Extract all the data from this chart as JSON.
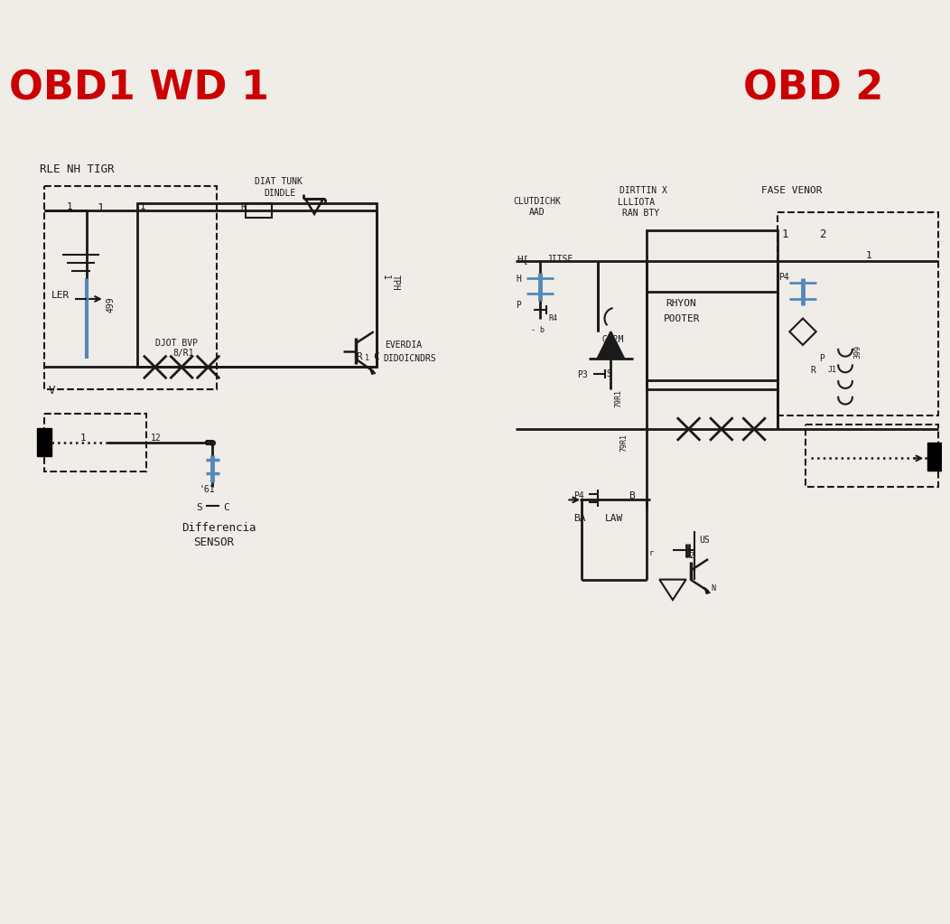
{
  "bg_color": "#f0ece8",
  "title_left": "OBD1 WD 1",
  "title_right": "OBD 2",
  "title_color": "#cc0000",
  "title_fontsize": 32,
  "line_color": "#1a1a1a",
  "blue_color": "#5588bb",
  "label_fontsize": 8,
  "small_fontsize": 7
}
